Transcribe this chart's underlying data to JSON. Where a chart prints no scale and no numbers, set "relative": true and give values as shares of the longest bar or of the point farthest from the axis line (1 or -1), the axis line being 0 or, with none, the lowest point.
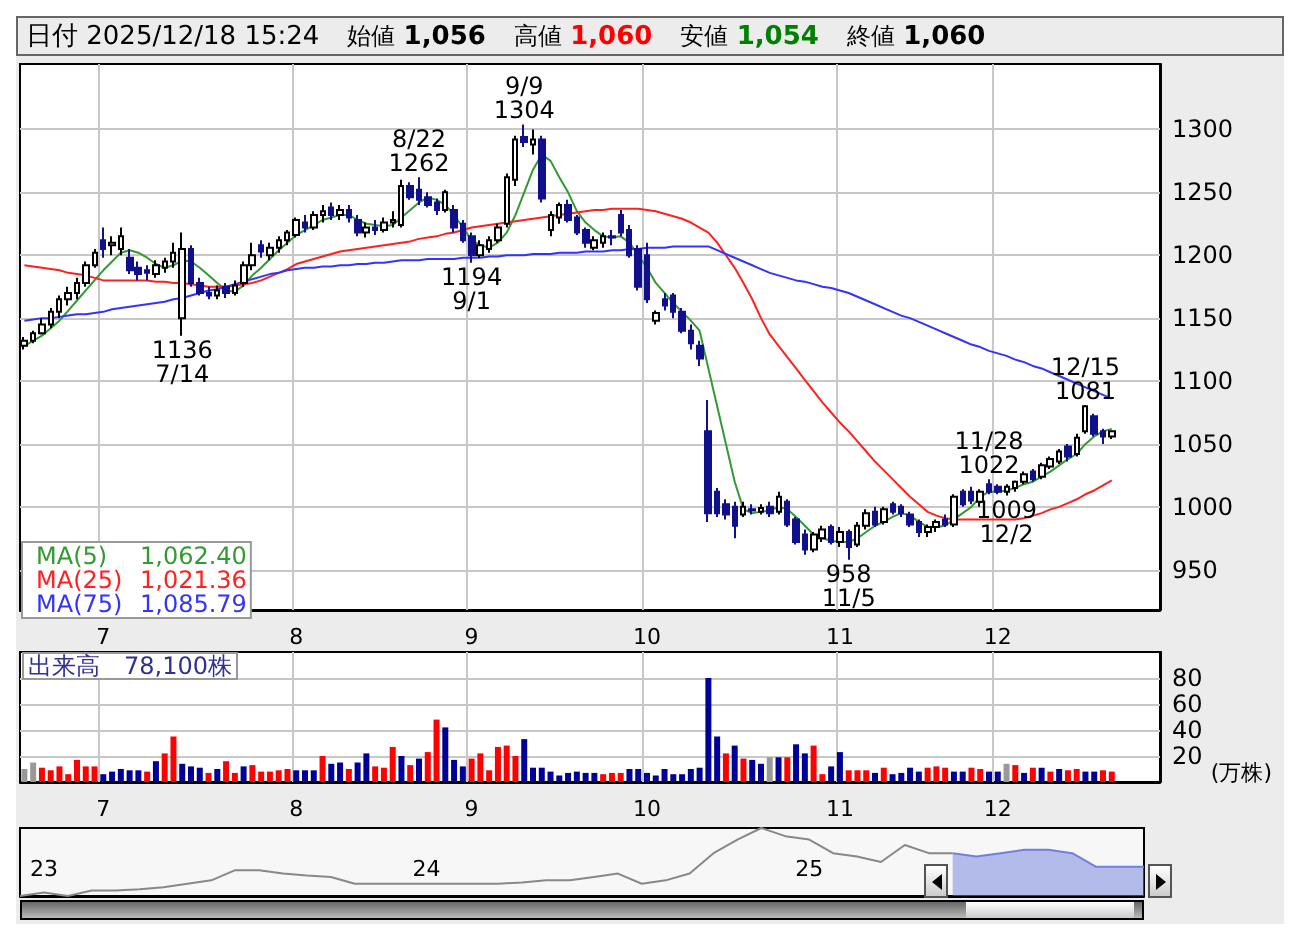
{
  "chart_data": [
    {
      "type": "candlestick",
      "title": "日付 2025/12/18 15:24",
      "annotations": [
        "始値 1,056",
        "高値 1,060",
        "安値 1,054",
        "終値 1,060",
        {
          "text": "9/9\n1304",
          "y": 1304
        },
        {
          "text": "8/22\n1262",
          "y": 1262
        },
        {
          "text": "1194\n9/1",
          "y": 1194
        },
        {
          "text": "1136\n7/14",
          "y": 1136
        },
        {
          "text": "12/15\n1081",
          "y": 1081
        },
        {
          "text": "11/28\n1022",
          "y": 1022
        },
        {
          "text": "1009\n12/2",
          "y": 1009
        },
        {
          "text": "958\n11/5",
          "y": 958
        }
      ],
      "categories": [
        null,
        null,
        null,
        null,
        null,
        null,
        null,
        null,
        null,
        "7",
        null,
        null,
        null,
        null,
        null,
        null,
        null,
        null,
        null,
        null,
        null,
        null,
        null,
        null,
        null,
        null,
        null,
        null,
        null,
        null,
        null,
        "8",
        null,
        null,
        null,
        null,
        null,
        null,
        null,
        null,
        null,
        null,
        null,
        null,
        null,
        null,
        null,
        null,
        null,
        null,
        null,
        "9",
        null,
        null,
        null,
        null,
        null,
        null,
        null,
        null,
        null,
        null,
        null,
        null,
        null,
        null,
        null,
        null,
        null,
        null,
        null,
        "10",
        null,
        null,
        null,
        null,
        null,
        null,
        null,
        null,
        null,
        null,
        null,
        null,
        null,
        null,
        null,
        null,
        null,
        null,
        null,
        null,
        null,
        "11",
        null,
        null,
        null,
        null,
        null,
        null,
        null,
        null,
        null,
        null,
        null,
        null,
        null,
        null,
        null,
        null,
        null,
        "12",
        null,
        null,
        null,
        null,
        null,
        null,
        null,
        null,
        null,
        null,
        null,
        null,
        null
      ],
      "colors": [
        "#ffffff",
        "#ffffff",
        "#ffffff",
        "#ffffff",
        "#ffffff",
        "#ffffff",
        "#ffffff",
        "#ffffff",
        "#ffffff",
        "#10108c",
        "#ffffff",
        "#ffffff",
        "#10108c",
        "#10108c",
        "#10108c",
        "#ffffff",
        "#ffffff",
        "#ffffff",
        "#ffffff",
        "#10108c",
        "#10108c",
        "#10108c",
        "#ffffff",
        "#10108c",
        "#ffffff",
        "#ffffff",
        "#ffffff",
        "#10108c",
        "#ffffff",
        "#ffffff",
        "#ffffff",
        "#ffffff",
        "#10108c",
        "#ffffff",
        "#ffffff",
        "#10108c",
        "#ffffff",
        "#10108c",
        "#10108c",
        "#ffffff",
        "#10108c",
        "#ffffff",
        "#ffffff",
        "#ffffff",
        "#10108c",
        "#10108c",
        "#10108c",
        "#10108c",
        "#ffffff",
        "#10108c",
        "#10108c",
        "#10108c",
        "#ffffff",
        "#ffffff",
        "#ffffff",
        "#ffffff",
        "#ffffff",
        "#10108c",
        "#ffffff",
        "#10108c",
        "#ffffff",
        "#ffffff",
        "#10108c",
        "#10108c",
        "#10108c",
        "#ffffff",
        "#ffffff",
        "#10108c",
        "#10108c",
        "#10108c",
        "#10108c",
        "#10108c",
        "#ffffff",
        "#10108c",
        "#10108c",
        "#10108c",
        "#10108c",
        "#10108c",
        "#10108c",
        "#10108c",
        "#10108c",
        "#10108c",
        "#ffffff",
        "#10108c",
        "#ffffff",
        "#10108c",
        "#ffffff",
        "#10108c",
        "#10108c",
        "#10108c",
        "#ffffff",
        "#ffffff",
        "#10108c",
        "#ffffff",
        "#10108c",
        "#ffffff",
        "#ffffff",
        "#10108c",
        "#ffffff",
        "#10108c",
        "#10108c",
        "#10108c",
        "#10108c",
        "#ffffff",
        "#ffffff",
        "#10108c",
        "#ffffff",
        "#10108c",
        "#10108c",
        "#ffffff",
        "#10108c",
        "#10108c",
        "#ffffff",
        "#ffffff",
        "#ffffff",
        "#10108c",
        "#ffffff",
        "#ffffff",
        "#ffffff",
        "#10108c",
        "#ffffff",
        "#ffffff",
        "#10108c",
        "#10108c",
        "#ffffff"
      ],
      "ohlc": [
        [
          1128,
          1135,
          1125,
          1132
        ],
        [
          1132,
          1140,
          1130,
          1138
        ],
        [
          1138,
          1150,
          1137,
          1145
        ],
        [
          1145,
          1158,
          1142,
          1155
        ],
        [
          1155,
          1168,
          1150,
          1165
        ],
        [
          1165,
          1175,
          1160,
          1170
        ],
        [
          1170,
          1182,
          1165,
          1178
        ],
        [
          1178,
          1195,
          1175,
          1192
        ],
        [
          1192,
          1205,
          1190,
          1202
        ],
        [
          1212,
          1222,
          1198,
          1205
        ],
        [
          1208,
          1215,
          1200,
          1210
        ],
        [
          1205,
          1222,
          1200,
          1215
        ],
        [
          1198,
          1205,
          1185,
          1188
        ],
        [
          1190,
          1195,
          1180,
          1185
        ],
        [
          1188,
          1192,
          1180,
          1186
        ],
        [
          1185,
          1196,
          1182,
          1192
        ],
        [
          1190,
          1198,
          1186,
          1195
        ],
        [
          1195,
          1210,
          1190,
          1202
        ],
        [
          1150,
          1218,
          1136,
          1205
        ],
        [
          1205,
          1208,
          1175,
          1178
        ],
        [
          1178,
          1182,
          1168,
          1170
        ],
        [
          1170,
          1175,
          1165,
          1168
        ],
        [
          1168,
          1176,
          1165,
          1172
        ],
        [
          1175,
          1178,
          1166,
          1170
        ],
        [
          1170,
          1180,
          1168,
          1176
        ],
        [
          1178,
          1195,
          1175,
          1192
        ],
        [
          1192,
          1210,
          1188,
          1200
        ],
        [
          1208,
          1212,
          1198,
          1203
        ],
        [
          1200,
          1210,
          1196,
          1206
        ],
        [
          1206,
          1215,
          1202,
          1212
        ],
        [
          1212,
          1220,
          1208,
          1218
        ],
        [
          1216,
          1230,
          1214,
          1228
        ],
        [
          1226,
          1232,
          1218,
          1222
        ],
        [
          1222,
          1235,
          1220,
          1232
        ],
        [
          1232,
          1240,
          1226,
          1235
        ],
        [
          1238,
          1242,
          1228,
          1232
        ],
        [
          1232,
          1240,
          1228,
          1236
        ],
        [
          1236,
          1240,
          1226,
          1230
        ],
        [
          1228,
          1232,
          1215,
          1218
        ],
        [
          1218,
          1226,
          1214,
          1222
        ],
        [
          1222,
          1228,
          1216,
          1220
        ],
        [
          1220,
          1230,
          1218,
          1226
        ],
        [
          1226,
          1235,
          1222,
          1228
        ],
        [
          1224,
          1260,
          1222,
          1255
        ],
        [
          1255,
          1258,
          1244,
          1246
        ],
        [
          1252,
          1262,
          1240,
          1244
        ],
        [
          1246,
          1250,
          1238,
          1240
        ],
        [
          1242,
          1245,
          1232,
          1236
        ],
        [
          1236,
          1252,
          1234,
          1250
        ],
        [
          1236,
          1240,
          1218,
          1222
        ],
        [
          1225,
          1228,
          1210,
          1212
        ],
        [
          1215,
          1218,
          1194,
          1200
        ],
        [
          1200,
          1212,
          1198,
          1208
        ],
        [
          1205,
          1215,
          1202,
          1212
        ],
        [
          1212,
          1225,
          1210,
          1222
        ],
        [
          1225,
          1265,
          1222,
          1262
        ],
        [
          1260,
          1295,
          1255,
          1292
        ],
        [
          1294,
          1304,
          1286,
          1290
        ],
        [
          1288,
          1300,
          1280,
          1292
        ],
        [
          1292,
          1295,
          1242,
          1245
        ],
        [
          1220,
          1235,
          1215,
          1232
        ],
        [
          1230,
          1242,
          1225,
          1240
        ],
        [
          1240,
          1244,
          1226,
          1228
        ],
        [
          1230,
          1232,
          1216,
          1218
        ],
        [
          1220,
          1222,
          1206,
          1210
        ],
        [
          1206,
          1215,
          1204,
          1212
        ],
        [
          1210,
          1218,
          1206,
          1215
        ],
        [
          1215,
          1220,
          1208,
          1214
        ],
        [
          1232,
          1236,
          1215,
          1218
        ],
        [
          1220,
          1224,
          1198,
          1200
        ],
        [
          1205,
          1208,
          1172,
          1175
        ],
        [
          1200,
          1210,
          1162,
          1165
        ],
        [
          1148,
          1156,
          1145,
          1154
        ],
        [
          1165,
          1170,
          1156,
          1160
        ],
        [
          1168,
          1170,
          1150,
          1155
        ],
        [
          1155,
          1158,
          1138,
          1140
        ],
        [
          1140,
          1145,
          1125,
          1130
        ],
        [
          1128,
          1132,
          1112,
          1118
        ],
        [
          1060,
          1085,
          988,
          995
        ],
        [
          1012,
          1015,
          992,
          995
        ],
        [
          1002,
          1006,
          990,
          994
        ],
        [
          1000,
          1004,
          975,
          985
        ],
        [
          994,
          1004,
          992,
          1000
        ],
        [
          998,
          1002,
          994,
          997
        ],
        [
          996,
          1002,
          994,
          999
        ],
        [
          1000,
          1004,
          992,
          995
        ],
        [
          996,
          1012,
          994,
          1008
        ],
        [
          1004,
          1006,
          984,
          986
        ],
        [
          990,
          992,
          970,
          972
        ],
        [
          978,
          982,
          962,
          966
        ],
        [
          966,
          980,
          964,
          978
        ],
        [
          975,
          985,
          972,
          982
        ],
        [
          984,
          986,
          970,
          972
        ],
        [
          972,
          984,
          968,
          980
        ],
        [
          980,
          982,
          958,
          968
        ],
        [
          970,
          988,
          968,
          985
        ],
        [
          985,
          998,
          982,
          995
        ],
        [
          996,
          1000,
          984,
          986
        ],
        [
          988,
          1000,
          986,
          998
        ],
        [
          1002,
          1004,
          994,
          996
        ],
        [
          1000,
          1002,
          992,
          995
        ],
        [
          994,
          996,
          984,
          986
        ],
        [
          988,
          990,
          976,
          980
        ],
        [
          980,
          986,
          976,
          984
        ],
        [
          984,
          990,
          980,
          988
        ],
        [
          990,
          994,
          984,
          986
        ],
        [
          986,
          1010,
          984,
          1008
        ],
        [
          1012,
          1014,
          1000,
          1002
        ],
        [
          1012,
          1016,
          1002,
          1005
        ],
        [
          1004,
          1014,
          1000,
          1012
        ],
        [
          1018,
          1022,
          1010,
          1012
        ],
        [
          1016,
          1018,
          1010,
          1012
        ],
        [
          1012,
          1018,
          1009,
          1016
        ],
        [
          1015,
          1021,
          1012,
          1020
        ],
        [
          1020,
          1028,
          1018,
          1026
        ],
        [
          1028,
          1030,
          1020,
          1022
        ],
        [
          1024,
          1035,
          1022,
          1033
        ],
        [
          1032,
          1040,
          1030,
          1038
        ],
        [
          1036,
          1046,
          1034,
          1044
        ],
        [
          1048,
          1050,
          1036,
          1040
        ],
        [
          1042,
          1058,
          1040,
          1055
        ],
        [
          1060,
          1081,
          1058,
          1080
        ],
        [
          1072,
          1074,
          1056,
          1058
        ],
        [
          1060,
          1062,
          1050,
          1056
        ],
        [
          1056,
          1060,
          1054,
          1060
        ]
      ],
      "series": [
        {
          "type": "line",
          "name": "MA(5) 1,062.40",
          "color": "#339933",
          "values": [
            1128,
            1132,
            1136,
            1142,
            1148,
            1156,
            1164,
            1172,
            1180,
            1188,
            1195,
            1202,
            1204,
            1202,
            1198,
            1193,
            1190,
            1192,
            1196,
            1195,
            1190,
            1184,
            1178,
            1172,
            1171,
            1176,
            1184,
            1190,
            1197,
            1204,
            1210,
            1216,
            1220,
            1224,
            1228,
            1230,
            1232,
            1232,
            1228,
            1225,
            1224,
            1223,
            1224,
            1230,
            1236,
            1242,
            1246,
            1244,
            1240,
            1232,
            1222,
            1212,
            1208,
            1206,
            1210,
            1218,
            1232,
            1250,
            1268,
            1280,
            1275,
            1262,
            1250,
            1235,
            1226,
            1220,
            1215,
            1214,
            1215,
            1210,
            1200,
            1190,
            1178,
            1170,
            1162,
            1155,
            1148,
            1140,
            1110,
            1080,
            1050,
            1020,
            998,
            995,
            996,
            997,
            1000,
            998,
            992,
            985,
            978,
            975,
            973,
            972,
            972,
            975,
            980,
            985,
            988,
            992,
            995,
            993,
            988,
            984,
            984,
            985,
            990,
            995,
            1000,
            1008,
            1012,
            1012,
            1013,
            1015,
            1018,
            1020,
            1024,
            1028,
            1033,
            1038,
            1042,
            1050,
            1056,
            1060,
            1062
          ]
        },
        {
          "type": "line",
          "name": "MA(25) 1,021.36",
          "color": "#ff2020",
          "values": [
            1192,
            1191,
            1190,
            1189,
            1188,
            1186,
            1185,
            1184,
            1182,
            1180,
            1180,
            1180,
            1180,
            1180,
            1180,
            1179,
            1179,
            1178,
            1178,
            1177,
            1176,
            1175,
            1175,
            1175,
            1176,
            1177,
            1178,
            1180,
            1183,
            1186,
            1189,
            1193,
            1195,
            1197,
            1199,
            1201,
            1203,
            1204,
            1205,
            1206,
            1207,
            1208,
            1209,
            1210,
            1211,
            1213,
            1214,
            1215,
            1217,
            1218,
            1220,
            1222,
            1223,
            1224,
            1225,
            1226,
            1227,
            1228,
            1229,
            1230,
            1231,
            1232,
            1233,
            1234,
            1235,
            1236,
            1236,
            1237,
            1237,
            1237,
            1237,
            1236,
            1235,
            1233,
            1231,
            1229,
            1226,
            1222,
            1218,
            1210,
            1200,
            1190,
            1178,
            1165,
            1150,
            1137,
            1128,
            1119,
            1110,
            1101,
            1092,
            1083,
            1075,
            1067,
            1060,
            1052,
            1044,
            1036,
            1029,
            1022,
            1015,
            1008,
            1002,
            996,
            993,
            991,
            990,
            990,
            990,
            990,
            990,
            990,
            990,
            990,
            991,
            993,
            995,
            998,
            1000,
            1003,
            1006,
            1010,
            1013,
            1017,
            1021
          ]
        },
        {
          "type": "line",
          "name": "MA(75) 1,085.79",
          "color": "#3333ff",
          "values": [
            1148,
            1149,
            1150,
            1150,
            1151,
            1152,
            1153,
            1153,
            1154,
            1155,
            1157,
            1158,
            1159,
            1160,
            1161,
            1162,
            1163,
            1165,
            1166,
            1168,
            1170,
            1172,
            1173,
            1175,
            1177,
            1179,
            1181,
            1183,
            1185,
            1186,
            1188,
            1189,
            1190,
            1190,
            1191,
            1191,
            1192,
            1192,
            1193,
            1193,
            1194,
            1194,
            1195,
            1196,
            1196,
            1196,
            1197,
            1197,
            1197,
            1197,
            1198,
            1198,
            1198,
            1199,
            1199,
            1200,
            1200,
            1200,
            1201,
            1201,
            1201,
            1202,
            1202,
            1202,
            1203,
            1203,
            1203,
            1204,
            1204,
            1205,
            1205,
            1206,
            1206,
            1206,
            1207,
            1207,
            1207,
            1207,
            1207,
            1204,
            1201,
            1198,
            1195,
            1192,
            1189,
            1186,
            1184,
            1182,
            1180,
            1179,
            1177,
            1175,
            1174,
            1172,
            1170,
            1167,
            1164,
            1161,
            1158,
            1155,
            1152,
            1150,
            1147,
            1144,
            1141,
            1138,
            1135,
            1132,
            1129,
            1127,
            1124,
            1122,
            1120,
            1117,
            1115,
            1112,
            1110,
            1107,
            1104,
            1101,
            1098,
            1095,
            1092,
            1089,
            1086
          ]
        }
      ],
      "ylim": [
        918,
        1352
      ],
      "yticks": [
        950,
        1000,
        1050,
        1100,
        1150,
        1200,
        1250,
        1300
      ],
      "grid": true,
      "legend": "bottom left"
    },
    {
      "type": "bar",
      "title": "出来高　78,100株",
      "ylabel": "(万株)",
      "categories": [
        null,
        null,
        null,
        null,
        null,
        null,
        null,
        null,
        null,
        "7",
        null,
        null,
        null,
        null,
        null,
        null,
        null,
        null,
        null,
        null,
        null,
        null,
        null,
        null,
        null,
        null,
        null,
        null,
        null,
        null,
        null,
        "8",
        null,
        null,
        null,
        null,
        null,
        null,
        null,
        null,
        null,
        null,
        null,
        null,
        null,
        null,
        null,
        null,
        null,
        null,
        null,
        "9",
        null,
        null,
        null,
        null,
        null,
        null,
        null,
        null,
        null,
        null,
        null,
        null,
        null,
        null,
        null,
        null,
        null,
        null,
        null,
        "10",
        null,
        null,
        null,
        null,
        null,
        null,
        null,
        null,
        null,
        null,
        null,
        null,
        null,
        null,
        null,
        null,
        null,
        null,
        null,
        null,
        null,
        "11",
        null,
        null,
        null,
        null,
        null,
        null,
        null,
        null,
        null,
        null,
        null,
        null,
        null,
        null,
        null,
        null,
        null,
        "12",
        null,
        null,
        null,
        null,
        null,
        null,
        null,
        null,
        null,
        null,
        null,
        null,
        null
      ],
      "values": [
        10,
        15,
        11,
        9,
        12,
        6,
        17,
        12,
        12,
        6,
        8,
        10,
        9,
        9,
        8,
        16,
        22,
        35,
        14,
        12,
        11,
        7,
        10,
        16,
        7,
        12,
        13,
        8,
        8,
        9,
        10,
        9,
        9,
        9,
        20,
        14,
        15,
        10,
        15,
        22,
        12,
        11,
        27,
        20,
        13,
        18,
        23,
        48,
        42,
        17,
        12,
        18,
        22,
        9,
        27,
        28,
        20,
        33,
        11,
        11,
        8,
        5,
        7,
        8,
        7,
        7,
        6,
        7,
        7,
        10,
        10,
        7,
        5,
        10,
        6,
        6,
        10,
        11,
        80,
        35,
        22,
        28,
        18,
        17,
        14,
        19,
        19,
        19,
        29,
        22,
        28,
        6,
        12,
        23,
        9,
        9,
        9,
        7,
        11,
        6,
        7,
        11,
        8,
        11,
        12,
        11,
        8,
        8,
        11,
        10,
        8,
        8,
        14,
        13,
        7,
        11,
        11,
        8,
        10,
        9,
        10,
        8,
        8,
        9,
        8
      ],
      "colors": [
        "#999999",
        "#999999",
        "#ff0000",
        "#ff0000",
        "#ff0000",
        "#ff0000",
        "#ff0000",
        "#ff0000",
        "#ff0000",
        "#000099",
        "#000099",
        "#000099",
        "#000099",
        "#000099",
        "#ff0000",
        "#000099",
        "#ff0000",
        "#ff0000",
        "#000099",
        "#000099",
        "#000099",
        "#ff0000",
        "#000099",
        "#ff0000",
        "#ff0000",
        "#000099",
        "#ff0000",
        "#ff0000",
        "#ff0000",
        "#ff0000",
        "#ff0000",
        "#000099",
        "#000099",
        "#000099",
        "#ff0000",
        "#000099",
        "#000099",
        "#ff0000",
        "#000099",
        "#000099",
        "#ff0000",
        "#ff0000",
        "#ff0000",
        "#000099",
        "#ff0000",
        "#000099",
        "#ff0000",
        "#ff0000",
        "#000099",
        "#000099",
        "#000099",
        "#ff0000",
        "#ff0000",
        "#ff0000",
        "#ff0000",
        "#ff0000",
        "#ff0000",
        "#000099",
        "#000099",
        "#000099",
        "#000099",
        "#000099",
        "#000099",
        "#000099",
        "#000099",
        "#000099",
        "#ff0000",
        "#ff0000",
        "#ff0000",
        "#000099",
        "#000099",
        "#000099",
        "#000099",
        "#000099",
        "#000099",
        "#000099",
        "#000099",
        "#000099",
        "#000099",
        "#000099",
        "#ff0000",
        "#000099",
        "#ff0000",
        "#000099",
        "#000099",
        "#999999",
        "#000099",
        "#ff0000",
        "#000099",
        "#000099",
        "#ff0000",
        "#ff0000",
        "#000099",
        "#000099",
        "#ff0000",
        "#ff0000",
        "#ff0000",
        "#000099",
        "#ff0000",
        "#000099",
        "#000099",
        "#000099",
        "#000099",
        "#ff0000",
        "#ff0000",
        "#ff0000",
        "#000099",
        "#000099",
        "#ff0000",
        "#ff0000",
        "#000099",
        "#000099",
        "#999999",
        "#ff0000",
        "#000099",
        "#ff0000",
        "#000099",
        "#ff0000",
        "#000099",
        "#ff0000",
        "#ff0000",
        "#000099",
        "#000099",
        "#ff0000",
        "#ff0000"
      ],
      "ylim": [
        0,
        100
      ],
      "yticks": [
        20,
        40,
        60,
        80
      ],
      "grid": true
    },
    {
      "type": "line",
      "relative": true,
      "categories": [
        null,
        "23",
        null,
        null,
        null,
        null,
        null,
        null,
        null,
        null,
        null,
        null,
        null,
        null,
        null,
        null,
        null,
        "24",
        null,
        null,
        null,
        null,
        null,
        null,
        null,
        null,
        null,
        null,
        null,
        null,
        null,
        null,
        null,
        "25",
        null,
        null,
        null,
        null,
        null,
        null,
        null,
        null,
        null,
        null,
        null,
        null,
        null,
        null
      ],
      "series": [
        {
          "color": "#888888",
          "values": [
            0,
            0.05,
            0,
            0.08,
            0.08,
            0.1,
            0.13,
            0.18,
            0.23,
            0.38,
            0.38,
            0.33,
            0.3,
            0.28,
            0.18,
            0.18,
            0.18,
            0.18,
            0.18,
            0.18,
            0.18,
            0.2,
            0.23,
            0.23,
            0.28,
            0.33,
            0.18,
            0.23,
            0.33,
            0.63,
            0.83,
            1,
            0.88,
            0.83,
            0.63,
            0.58,
            0.5,
            0.75,
            0.63,
            0.63,
            null,
            null,
            null,
            null,
            null,
            null,
            null,
            null
          ]
        },
        {
          "type": "area",
          "color": "#7080e0",
          "values": [
            null,
            null,
            null,
            null,
            null,
            null,
            null,
            null,
            null,
            null,
            null,
            null,
            null,
            null,
            null,
            null,
            null,
            null,
            null,
            null,
            null,
            null,
            null,
            null,
            null,
            null,
            null,
            null,
            null,
            null,
            null,
            null,
            null,
            null,
            null,
            null,
            null,
            null,
            null,
            0.63,
            0.58,
            0.63,
            0.68,
            0.68,
            0.63,
            0.43,
            0.43,
            0.43
          ]
        }
      ]
    }
  ]
}
